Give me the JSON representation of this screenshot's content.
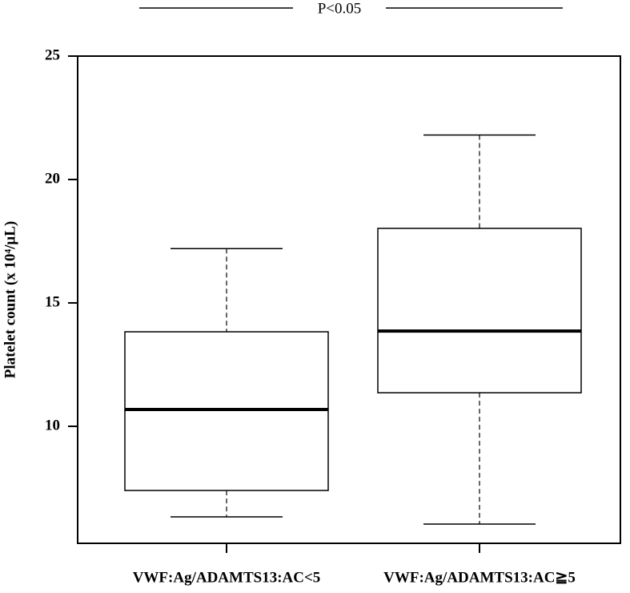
{
  "chart_data": {
    "type": "box",
    "y_label": "Platelet count (x 10⁴/μL)",
    "annotation": "P<0.05",
    "categories": [
      "VWF:Ag/ADAMTS13:AC<5",
      "VWF:Ag/ADAMTS13:AC≧5"
    ],
    "boxes": [
      {
        "low": 6.33,
        "q1": 7.4,
        "median": 10.68,
        "q3": 13.83,
        "high": 17.2
      },
      {
        "low": 6.04,
        "q1": 11.36,
        "median": 13.86,
        "q3": 18.02,
        "high": 21.8
      }
    ],
    "color": "#000000",
    "ylim": [
      5.26,
      25
    ],
    "yticks": [
      10,
      15,
      20,
      25
    ]
  }
}
